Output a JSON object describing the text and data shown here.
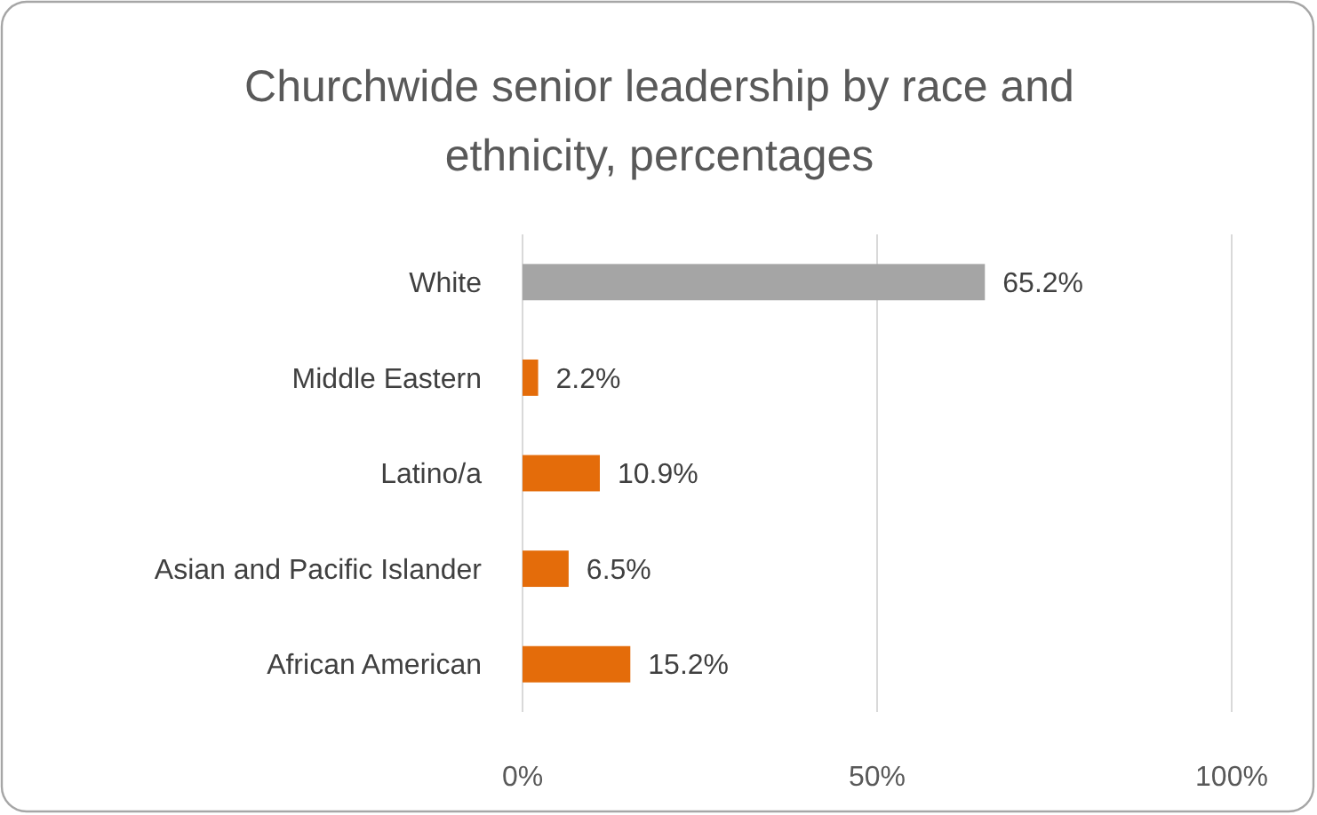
{
  "chart_data": {
    "type": "bar",
    "orientation": "horizontal",
    "title": "Churchwide senior leadership by race and ethnicity, percentages",
    "categories": [
      "White",
      "Middle Eastern",
      "Latino/a",
      "Asian and Pacific Islander",
      "African American"
    ],
    "values": [
      65.2,
      2.2,
      10.9,
      6.5,
      15.2
    ],
    "colors": [
      "#a5a5a5",
      "#e46c0a",
      "#e46c0a",
      "#e46c0a",
      "#e46c0a"
    ],
    "value_labels": [
      "65.2%",
      "2.2%",
      "10.9%",
      "6.5%",
      "15.2%"
    ],
    "xlim": [
      0,
      100
    ],
    "xticks": [
      {
        "value": 0,
        "label": "0%"
      },
      {
        "value": 50,
        "label": "50%"
      },
      {
        "value": 100,
        "label": "100%"
      }
    ],
    "grid": "x"
  }
}
